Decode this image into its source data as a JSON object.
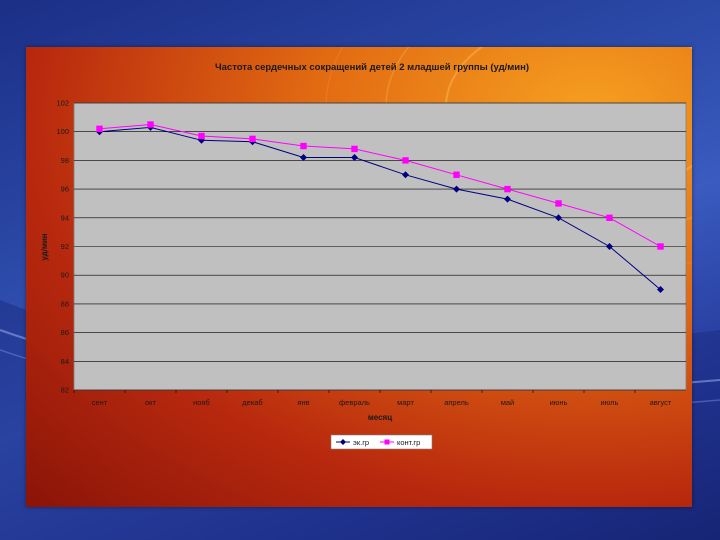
{
  "colors": {
    "plot_bg": "#c0c0c0",
    "series_ek": "#000080",
    "series_kont": "#ff00ff"
  },
  "chart_data": {
    "type": "line",
    "title": "Частота сердечных сокращений детей 2 младшей группы (уд/мин)",
    "xlabel": "месяц",
    "ylabel": "уд/мин",
    "categories": [
      "сент",
      "окт",
      "нояб",
      "декаб",
      "янв",
      "февраль",
      "март",
      "апрель",
      "май",
      "июнь",
      "июль",
      "август"
    ],
    "ylim": [
      82,
      102
    ],
    "yticks": [
      82,
      84,
      86,
      88,
      90,
      92,
      94,
      96,
      98,
      100,
      102
    ],
    "grid": true,
    "legend_position": "bottom",
    "series": [
      {
        "name": "эк.гр",
        "marker": "diamond",
        "values": [
          100,
          100.3,
          99.4,
          99.3,
          98.2,
          98.2,
          97,
          96,
          95.3,
          94,
          92,
          89
        ]
      },
      {
        "name": "конт.гр",
        "marker": "square",
        "values": [
          100.2,
          100.5,
          99.7,
          99.5,
          99,
          98.8,
          98,
          97,
          96,
          95,
          94,
          92
        ]
      }
    ]
  }
}
